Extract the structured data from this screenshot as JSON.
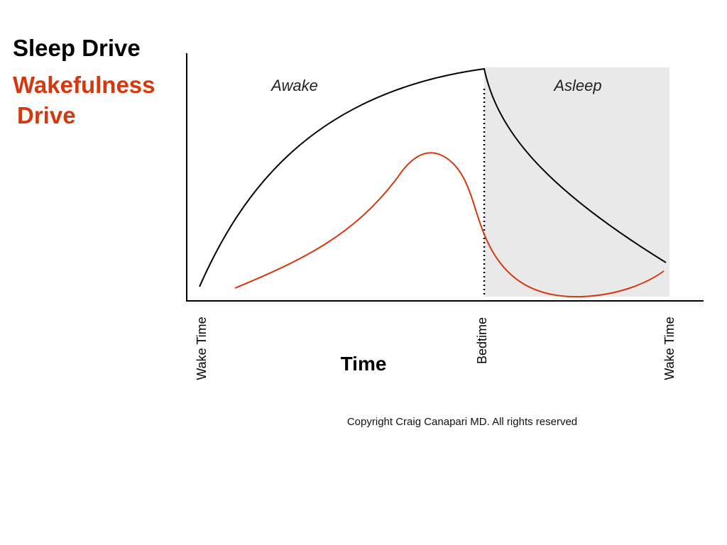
{
  "legend": {
    "sleep_drive": "Sleep Drive",
    "wakefulness_drive": [
      "Wakefulness",
      "Drive"
    ]
  },
  "regions": {
    "awake": "Awake",
    "asleep": "Asleep"
  },
  "x_axis": {
    "title": "Time",
    "labels": [
      "Wake Time",
      "Bedtime",
      "Wake Time"
    ]
  },
  "copyright": "Copyright Craig Canapari MD. All rights reserved"
}
